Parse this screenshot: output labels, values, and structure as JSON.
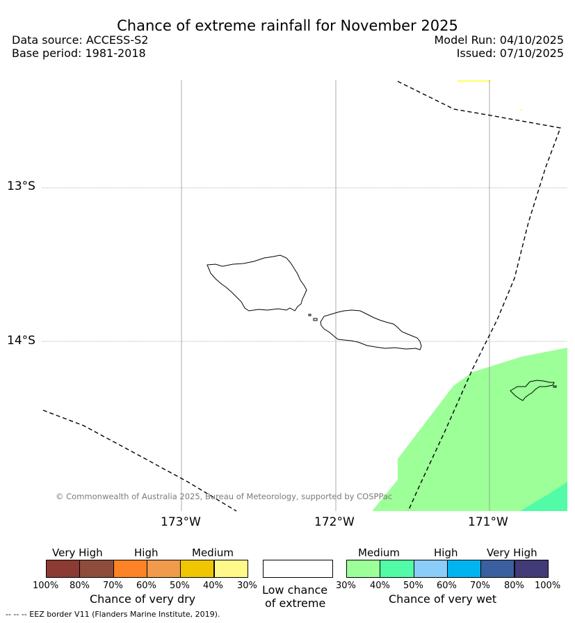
{
  "title": "Chance of extreme rainfall for November 2025",
  "data_source": "Data source: ACCESS-S2",
  "base_period": "Base period: 1981-2018",
  "model_run": "Model Run: 04/10/2025",
  "issued": "Issued: 07/10/2025",
  "map": {
    "lat_labels": [
      "13°S",
      "14°S"
    ],
    "lon_labels": [
      "173°W",
      "172°W",
      "171°W"
    ],
    "copyright": "© Commonwealth of Australia 2025, Bureau of Meteorology, supported by COSPPac",
    "colors": {
      "wet_medium_30_40": "#9cff98",
      "wet_medium_40_50": "#52fba6",
      "dry_light_30_40": "#ffff8c",
      "coastline": "#000000",
      "eez_border": "#000000",
      "gridline": "#999999"
    }
  },
  "legend": {
    "dry": {
      "category_labels": [
        "Very High",
        "High",
        "Medium"
      ],
      "ticks": [
        "100%",
        "80%",
        "70%",
        "60%",
        "50%",
        "40%",
        "30%"
      ],
      "caption": "Chance of very dry",
      "colors": [
        "#8c3a34",
        "#8e4c3c",
        "#fe8326",
        "#ef9b4b",
        "#efc600",
        "#fff98b"
      ]
    },
    "neutral": {
      "caption_line1": "Low chance",
      "caption_line2": "of extreme",
      "color": "#ffffff"
    },
    "wet": {
      "category_labels": [
        "Medium",
        "High",
        "Very High"
      ],
      "ticks": [
        "30%",
        "40%",
        "50%",
        "60%",
        "70%",
        "80%",
        "100%"
      ],
      "caption": "Chance of very wet",
      "colors": [
        "#9cff98",
        "#52fba6",
        "#89cdf8",
        "#00b4ef",
        "#3a609f",
        "#413b77"
      ]
    }
  },
  "footnote": "--  --  -- EEZ border V11 (Flanders Marine Institute, 2019)."
}
